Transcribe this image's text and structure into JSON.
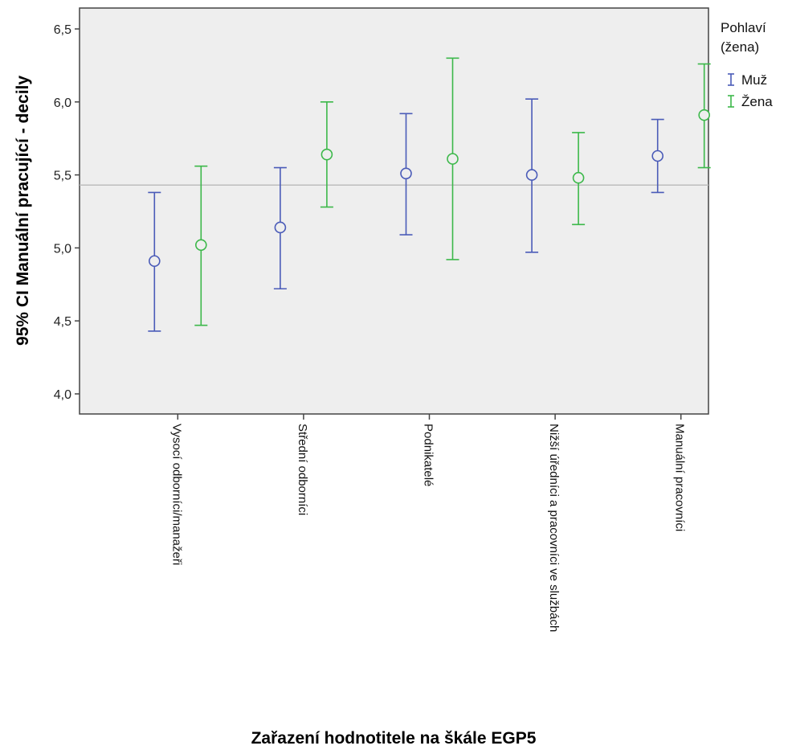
{
  "chart_data": {
    "type": "errorbar",
    "ylabel": "95% CI Manuální pracující - decily",
    "xlabel": "Zařazení hodnotitele na škále EGP5",
    "ylim": [
      4.0,
      6.5
    ],
    "yticks": [
      "4,0",
      "4,5",
      "5,0",
      "5,5",
      "6,0",
      "6,5"
    ],
    "ytick_values": [
      4.0,
      4.5,
      5.0,
      5.5,
      6.0,
      6.5
    ],
    "categories": [
      "Vysocí odborníci/manažeři",
      "Střední odborníci",
      "Podnikatelé",
      "Nižší úředníci a pracovníci ve službách",
      "Manuální pracovníci"
    ],
    "reference_line": 5.43,
    "legend": {
      "title_line1": "Pohlaví",
      "title_line2": "(žena)",
      "position": "top-right"
    },
    "series": [
      {
        "name": "Muž",
        "color": "#4a5bb8",
        "mean": [
          4.91,
          5.14,
          5.51,
          5.5,
          5.63
        ],
        "lower": [
          4.43,
          4.72,
          5.09,
          4.97,
          5.38
        ],
        "upper": [
          5.38,
          5.55,
          5.92,
          6.02,
          5.88
        ]
      },
      {
        "name": "Žena",
        "color": "#3cb84a",
        "mean": [
          5.02,
          5.64,
          5.61,
          5.48,
          5.91
        ],
        "lower": [
          4.47,
          5.28,
          4.92,
          5.16,
          5.55
        ],
        "upper": [
          5.56,
          6.0,
          6.3,
          5.79,
          6.26
        ]
      }
    ],
    "grid": false,
    "plot_background": "#eeeeee"
  }
}
